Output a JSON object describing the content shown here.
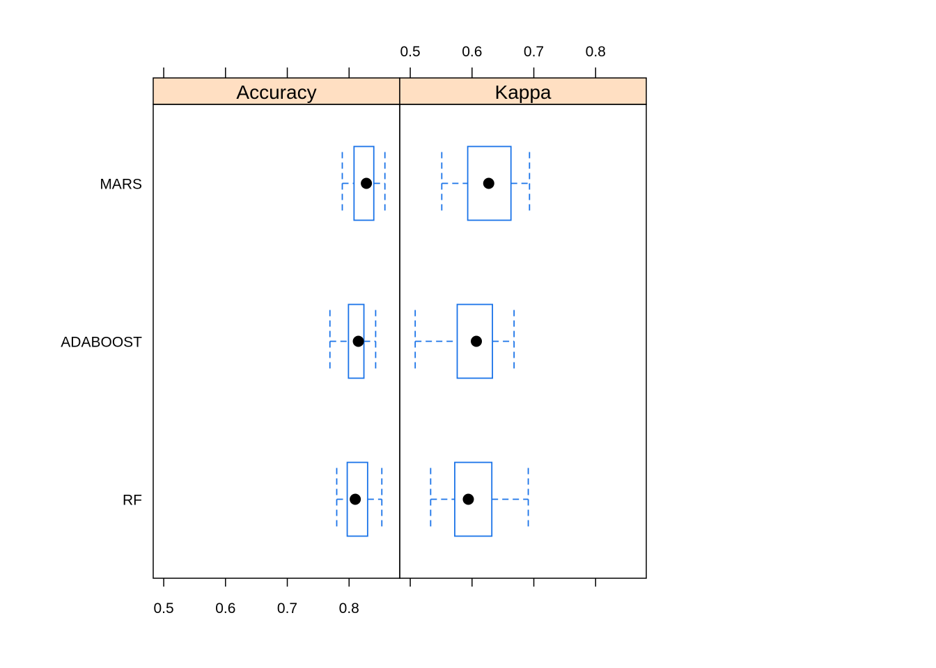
{
  "chart_data": {
    "type": "boxplot",
    "categories": [
      "MARS",
      "ADABOOST",
      "RF"
    ],
    "xlim": [
      0.483,
      0.882
    ],
    "ticks": [
      0.5,
      0.6,
      0.7,
      0.8
    ],
    "tick_labels": [
      "0.5",
      "0.6",
      "0.7",
      "0.8"
    ],
    "colors": {
      "box": "#1a73e8",
      "strip": "#ffdfc2",
      "median": "#000000",
      "frame": "#000000"
    },
    "panels": [
      {
        "name": "Accuracy",
        "boxes": [
          {
            "category": "MARS",
            "min": 0.789,
            "q1": 0.808,
            "median": 0.828,
            "q3": 0.84,
            "max": 0.858
          },
          {
            "category": "ADABOOST",
            "min": 0.769,
            "q1": 0.799,
            "median": 0.815,
            "q3": 0.824,
            "max": 0.843
          },
          {
            "category": "RF",
            "min": 0.78,
            "q1": 0.797,
            "median": 0.81,
            "q3": 0.83,
            "max": 0.853
          }
        ]
      },
      {
        "name": "Kappa",
        "boxes": [
          {
            "category": "MARS",
            "min": 0.551,
            "q1": 0.593,
            "median": 0.627,
            "q3": 0.663,
            "max": 0.693
          },
          {
            "category": "ADABOOST",
            "min": 0.508,
            "q1": 0.576,
            "median": 0.607,
            "q3": 0.633,
            "max": 0.668
          },
          {
            "category": "RF",
            "min": 0.533,
            "q1": 0.572,
            "median": 0.594,
            "q3": 0.632,
            "max": 0.691
          }
        ]
      }
    ]
  }
}
